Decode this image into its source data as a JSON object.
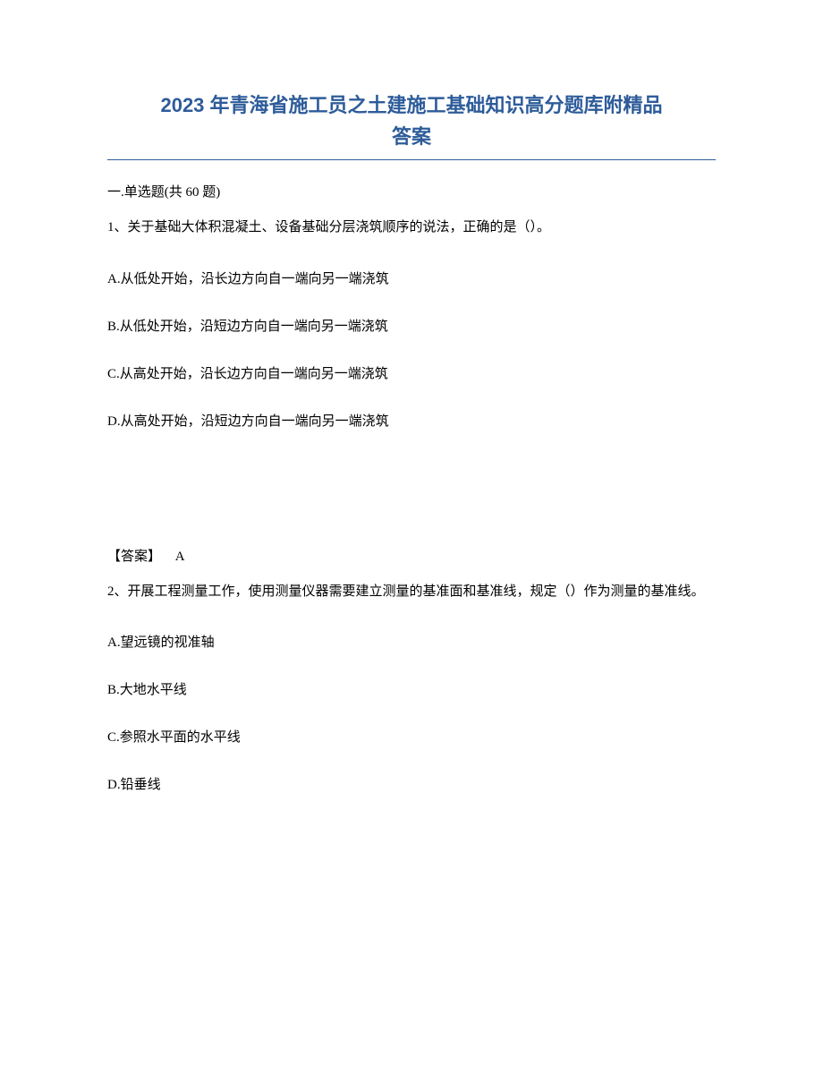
{
  "title": {
    "line1": "2023 年青海省施工员之土建施工基础知识高分题库附精品",
    "line2": "答案",
    "color": "#2e5c9a",
    "fontsize": 22
  },
  "section_header": "一.单选题(共 60 题)",
  "questions": [
    {
      "number": "1、",
      "stem": "关于基础大体积混凝土、设备基础分层浇筑顺序的说法，正确的是（）。",
      "options": [
        "A.从低处开始，沿长边方向自一端向另一端浇筑",
        "B.从低处开始，沿短边方向自一端向另一端浇筑",
        "C.从高处开始，沿长边方向自一端向另一端浇筑",
        "D.从高处开始，沿短边方向自一端向另一端浇筑"
      ],
      "answer_label": "【答案】",
      "answer_value": "A"
    },
    {
      "number": "2、",
      "stem": "开展工程测量工作，使用测量仪器需要建立测量的基准面和基准线，规定（）作为测量的基准线。",
      "options": [
        "A.望远镜的视准轴",
        "B.大地水平线",
        "C.参照水平面的水平线",
        "D.铅垂线"
      ]
    }
  ],
  "text_color": "#000000",
  "body_fontsize": 15,
  "background_color": "#ffffff"
}
